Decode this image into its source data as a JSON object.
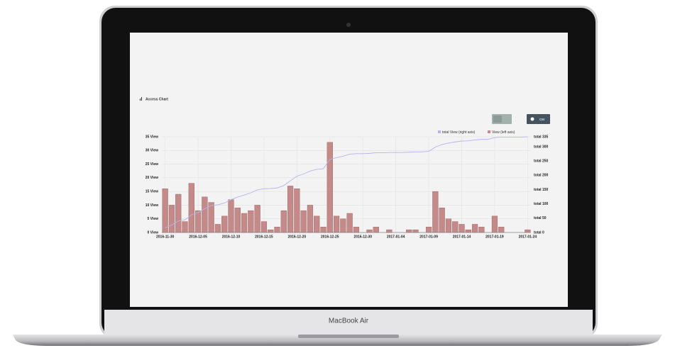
{
  "device_label": "MacBook Air",
  "panel_title": "Access Chart",
  "csv_button": "csv",
  "chart_data": {
    "type": "bar",
    "categories": [
      "2016-11-30",
      null,
      null,
      null,
      null,
      "2016-12-05",
      null,
      null,
      null,
      null,
      "2016-12-10",
      null,
      null,
      null,
      null,
      "2016-12-15",
      null,
      null,
      null,
      null,
      "2016-12-20",
      null,
      null,
      null,
      null,
      "2016-12-25",
      null,
      null,
      null,
      null,
      "2016-12-30",
      null,
      null,
      null,
      null,
      "2017-01-04",
      null,
      null,
      null,
      null,
      "2017-01-09",
      null,
      null,
      null,
      null,
      "2017-01-14",
      null,
      null,
      null,
      null,
      "2017-01-19",
      null,
      null,
      null,
      null,
      "2017-01-24"
    ],
    "series": [
      {
        "name": "total View (right axis)",
        "color": "#b4b4ee",
        "axis": "y2",
        "type": "line",
        "values": [
          16,
          26,
          40,
          44,
          62,
          70,
          83,
          94,
          97,
          103,
          115,
          124,
          131,
          139,
          149,
          153,
          154,
          156,
          164,
          181,
          197,
          205,
          215,
          221,
          223,
          256,
          262,
          267,
          274,
          276,
          276,
          277,
          279,
          279,
          280,
          280,
          280,
          281,
          282,
          282,
          284,
          299,
          308,
          313,
          317,
          320,
          321,
          324,
          326,
          326,
          332,
          334,
          334,
          334,
          334,
          335
        ]
      },
      {
        "name": "View (left axis)",
        "color": "#c48a8a",
        "type": "bar",
        "values": [
          16,
          10,
          14,
          4,
          18,
          8,
          13,
          11,
          3,
          6,
          12,
          9,
          7,
          8,
          10,
          4,
          1,
          2,
          8,
          17,
          16,
          8,
          10,
          6,
          2,
          33,
          6,
          5,
          7,
          2,
          0,
          1,
          2,
          0,
          1,
          0,
          0,
          1,
          1,
          0,
          2,
          15,
          9,
          5,
          4,
          3,
          1,
          3,
          2,
          0,
          6,
          2,
          0,
          0,
          0,
          1
        ]
      }
    ],
    "ylim": [
      0,
      35
    ],
    "yticks": [
      {
        "value": 0,
        "label": "0 View"
      },
      {
        "value": 5,
        "label": "5 View"
      },
      {
        "value": 10,
        "label": "10 View"
      },
      {
        "value": 15,
        "label": "15 View"
      },
      {
        "value": 20,
        "label": "20 View"
      },
      {
        "value": 25,
        "label": "25 View"
      },
      {
        "value": 30,
        "label": "30 View"
      },
      {
        "value": 35,
        "label": "35 View"
      }
    ],
    "y2lim": [
      0,
      335
    ],
    "y2ticks": [
      {
        "value": 0,
        "label": "total 0"
      },
      {
        "value": 50,
        "label": "total 50"
      },
      {
        "value": 100,
        "label": "total 100"
      },
      {
        "value": 150,
        "label": "total 150"
      },
      {
        "value": 200,
        "label": "total 200"
      },
      {
        "value": 250,
        "label": "total 250"
      },
      {
        "value": 300,
        "label": "total 300"
      },
      {
        "value": 335,
        "label": "total 335"
      }
    ],
    "grid": true,
    "legend": "top-right"
  }
}
